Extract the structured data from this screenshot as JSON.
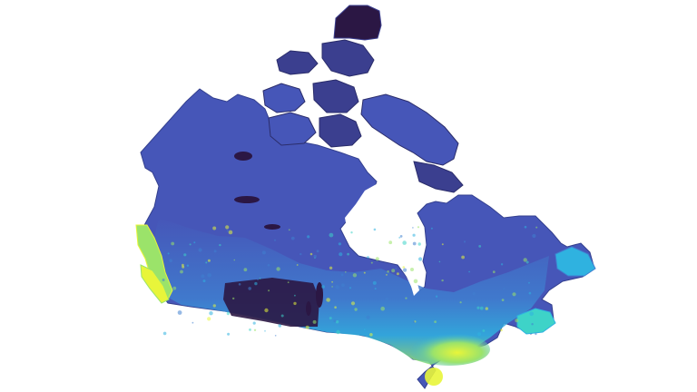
{
  "map": {
    "region": "Canada",
    "background": "#ffffff",
    "colormap": [
      "#2b1744",
      "#3b3f8f",
      "#4656b8",
      "#3f7fd0",
      "#2fb2e0",
      "#3ed3c8",
      "#9be36a",
      "#e8f53a"
    ],
    "low_color": "#2b1744",
    "mid_color": "#4656b8",
    "high_color": "#e8f53a",
    "visible_text": []
  }
}
